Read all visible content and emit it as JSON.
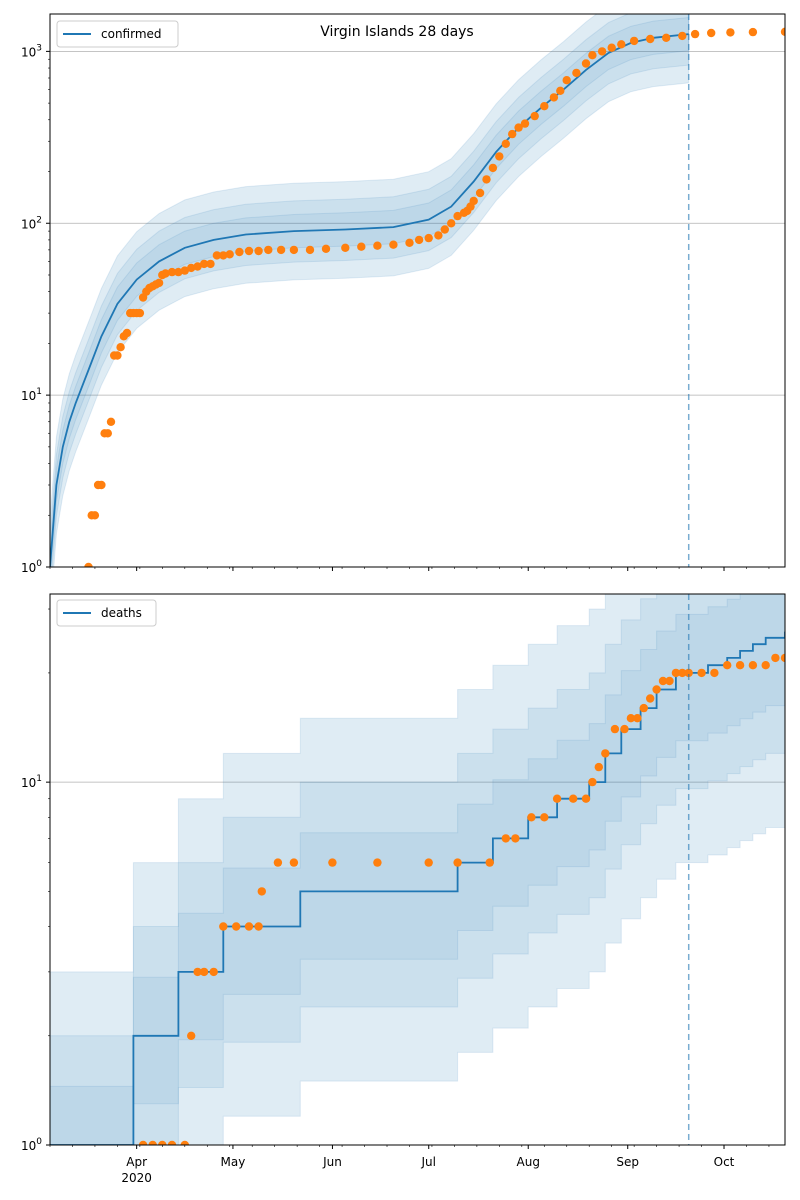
{
  "colors": {
    "model": "#1f77b4",
    "observed": "#ff7f0e",
    "grid": "#b0b0b0",
    "band": "#1f77b4"
  },
  "chart_data": [
    {
      "type": "line",
      "title": "Virgin Islands 28 days",
      "yscale": "log",
      "ylim": [
        1,
        1650
      ],
      "xlim": [
        "2020-03-05",
        "2020-10-20"
      ],
      "x_ticks": [
        {
          "date": "2020-04-01",
          "label": "Apr",
          "sublabel": "2020"
        },
        {
          "date": "2020-05-01",
          "label": "May",
          "sublabel": ""
        },
        {
          "date": "2020-06-01",
          "label": "Jun",
          "sublabel": ""
        },
        {
          "date": "2020-07-01",
          "label": "Jul",
          "sublabel": ""
        },
        {
          "date": "2020-08-01",
          "label": "Aug",
          "sublabel": ""
        },
        {
          "date": "2020-09-01",
          "label": "Sep",
          "sublabel": ""
        },
        {
          "date": "2020-10-01",
          "label": "Oct",
          "sublabel": ""
        }
      ],
      "y_ticks": [
        {
          "value": 1,
          "base": "10",
          "exp": "0"
        },
        {
          "value": 10,
          "base": "10",
          "exp": "1"
        },
        {
          "value": 100,
          "base": "10",
          "exp": "2"
        },
        {
          "value": 1000,
          "base": "10",
          "exp": "3"
        }
      ],
      "grid_y": true,
      "legend": {
        "position": "top-left",
        "label": "confirmed"
      },
      "forecast_start": "2020-09-20",
      "model": {
        "name": "confirmed",
        "x": [
          "2020-03-05",
          "2020-03-07",
          "2020-03-09",
          "2020-03-11",
          "2020-03-13",
          "2020-03-17",
          "2020-03-21",
          "2020-03-26",
          "2020-04-01",
          "2020-04-08",
          "2020-04-16",
          "2020-04-25",
          "2020-05-05",
          "2020-05-20",
          "2020-06-05",
          "2020-06-20",
          "2020-07-01",
          "2020-07-08",
          "2020-07-15",
          "2020-07-22",
          "2020-07-29",
          "2020-08-05",
          "2020-08-12",
          "2020-08-19",
          "2020-08-26",
          "2020-09-02",
          "2020-09-09",
          "2020-09-20"
        ],
        "y": [
          1,
          3,
          5,
          7,
          9,
          14,
          22,
          34,
          47,
          60,
          72,
          80,
          86,
          90,
          92,
          95,
          105,
          125,
          175,
          260,
          360,
          470,
          600,
          780,
          980,
          1120,
          1200,
          1260
        ]
      },
      "observed": {
        "x": [
          "2020-03-17",
          "2020-03-18",
          "2020-03-19",
          "2020-03-20",
          "2020-03-21",
          "2020-03-22",
          "2020-03-23",
          "2020-03-24",
          "2020-03-25",
          "2020-03-26",
          "2020-03-27",
          "2020-03-28",
          "2020-03-29",
          "2020-03-30",
          "2020-03-31",
          "2020-04-01",
          "2020-04-02",
          "2020-04-03",
          "2020-04-04",
          "2020-04-05",
          "2020-04-06",
          "2020-04-07",
          "2020-04-08",
          "2020-04-09",
          "2020-04-10",
          "2020-04-12",
          "2020-04-14",
          "2020-04-16",
          "2020-04-18",
          "2020-04-20",
          "2020-04-22",
          "2020-04-24",
          "2020-04-26",
          "2020-04-28",
          "2020-04-30",
          "2020-05-03",
          "2020-05-06",
          "2020-05-09",
          "2020-05-12",
          "2020-05-16",
          "2020-05-20",
          "2020-05-25",
          "2020-05-30",
          "2020-06-05",
          "2020-06-10",
          "2020-06-15",
          "2020-06-20",
          "2020-06-25",
          "2020-06-28",
          "2020-07-01",
          "2020-07-04",
          "2020-07-06",
          "2020-07-08",
          "2020-07-10",
          "2020-07-12",
          "2020-07-13",
          "2020-07-14",
          "2020-07-15",
          "2020-07-17",
          "2020-07-19",
          "2020-07-21",
          "2020-07-23",
          "2020-07-25",
          "2020-07-27",
          "2020-07-29",
          "2020-07-31",
          "2020-08-03",
          "2020-08-06",
          "2020-08-09",
          "2020-08-11",
          "2020-08-13",
          "2020-08-16",
          "2020-08-19",
          "2020-08-21",
          "2020-08-24",
          "2020-08-27",
          "2020-08-30",
          "2020-09-03",
          "2020-09-08",
          "2020-09-13",
          "2020-09-18",
          "2020-09-22",
          "2020-09-27",
          "2020-10-03",
          "2020-10-10",
          "2020-10-20"
        ],
        "y": [
          1,
          2,
          2,
          3,
          3,
          6,
          6,
          7,
          17,
          17,
          19,
          22,
          23,
          30,
          30,
          30,
          30,
          37,
          40,
          42,
          43,
          44,
          45,
          50,
          51,
          52,
          52,
          53,
          55,
          56,
          58,
          58,
          65,
          65,
          66,
          68,
          69,
          69,
          70,
          70,
          70,
          70,
          71,
          72,
          73,
          74,
          75,
          77,
          80,
          82,
          85,
          92,
          100,
          110,
          115,
          118,
          125,
          135,
          150,
          180,
          210,
          245,
          290,
          330,
          360,
          380,
          420,
          480,
          540,
          590,
          680,
          750,
          850,
          950,
          1000,
          1050,
          1100,
          1150,
          1180,
          1200,
          1230,
          1260,
          1280,
          1290,
          1295,
          1300
        ]
      }
    },
    {
      "type": "line",
      "title": "",
      "yscale": "log",
      "ylim": [
        1,
        33
      ],
      "xlim": [
        "2020-03-05",
        "2020-10-20"
      ],
      "x_ticks": [
        {
          "date": "2020-04-01",
          "label": "Apr",
          "sublabel": "2020"
        },
        {
          "date": "2020-05-01",
          "label": "May",
          "sublabel": ""
        },
        {
          "date": "2020-06-01",
          "label": "Jun",
          "sublabel": ""
        },
        {
          "date": "2020-07-01",
          "label": "Jul",
          "sublabel": ""
        },
        {
          "date": "2020-08-01",
          "label": "Aug",
          "sublabel": ""
        },
        {
          "date": "2020-09-01",
          "label": "Sep",
          "sublabel": ""
        },
        {
          "date": "2020-10-01",
          "label": "Oct",
          "sublabel": ""
        }
      ],
      "y_ticks": [
        {
          "value": 1,
          "base": "10",
          "exp": "0"
        },
        {
          "value": 10,
          "base": "10",
          "exp": "1"
        }
      ],
      "grid_y": true,
      "legend": {
        "position": "top-left",
        "label": "deaths"
      },
      "forecast_start": "2020-09-20",
      "model": {
        "name": "deaths",
        "x": [
          "2020-03-05",
          "2020-03-31",
          "2020-04-14",
          "2020-04-28",
          "2020-05-22",
          "2020-07-10",
          "2020-07-21",
          "2020-08-01",
          "2020-08-10",
          "2020-08-20",
          "2020-08-25",
          "2020-08-30",
          "2020-09-05",
          "2020-09-10",
          "2020-09-16",
          "2020-09-26",
          "2020-10-02",
          "2020-10-06",
          "2020-10-10",
          "2020-10-14",
          "2020-10-20"
        ],
        "y": [
          1,
          2,
          3,
          4,
          5,
          6,
          7,
          8,
          9,
          10,
          12,
          14,
          16,
          18,
          20,
          21,
          22,
          23,
          24,
          25,
          26
        ]
      },
      "observed": {
        "x": [
          "2020-04-03",
          "2020-04-06",
          "2020-04-09",
          "2020-04-12",
          "2020-04-16",
          "2020-04-18",
          "2020-04-20",
          "2020-04-22",
          "2020-04-25",
          "2020-04-28",
          "2020-05-02",
          "2020-05-06",
          "2020-05-09",
          "2020-05-10",
          "2020-05-15",
          "2020-05-20",
          "2020-06-01",
          "2020-06-15",
          "2020-07-01",
          "2020-07-10",
          "2020-07-20",
          "2020-07-25",
          "2020-07-28",
          "2020-08-02",
          "2020-08-06",
          "2020-08-10",
          "2020-08-15",
          "2020-08-19",
          "2020-08-21",
          "2020-08-23",
          "2020-08-25",
          "2020-08-28",
          "2020-08-31",
          "2020-09-02",
          "2020-09-04",
          "2020-09-06",
          "2020-09-08",
          "2020-09-10",
          "2020-09-12",
          "2020-09-14",
          "2020-09-16",
          "2020-09-18",
          "2020-09-20",
          "2020-09-24",
          "2020-09-28",
          "2020-10-02",
          "2020-10-06",
          "2020-10-10",
          "2020-10-14",
          "2020-10-17",
          "2020-10-20"
        ],
        "y": [
          1,
          1,
          1,
          1,
          1,
          2,
          3,
          3,
          3,
          4,
          4,
          4,
          4,
          5,
          6,
          6,
          6,
          6,
          6,
          6,
          6,
          7,
          7,
          8,
          8,
          9,
          9,
          9,
          10,
          11,
          12,
          14,
          14,
          15,
          15,
          16,
          17,
          18,
          19,
          19,
          20,
          20,
          20,
          20,
          20,
          21,
          21,
          21,
          21,
          22,
          22
        ]
      }
    }
  ]
}
